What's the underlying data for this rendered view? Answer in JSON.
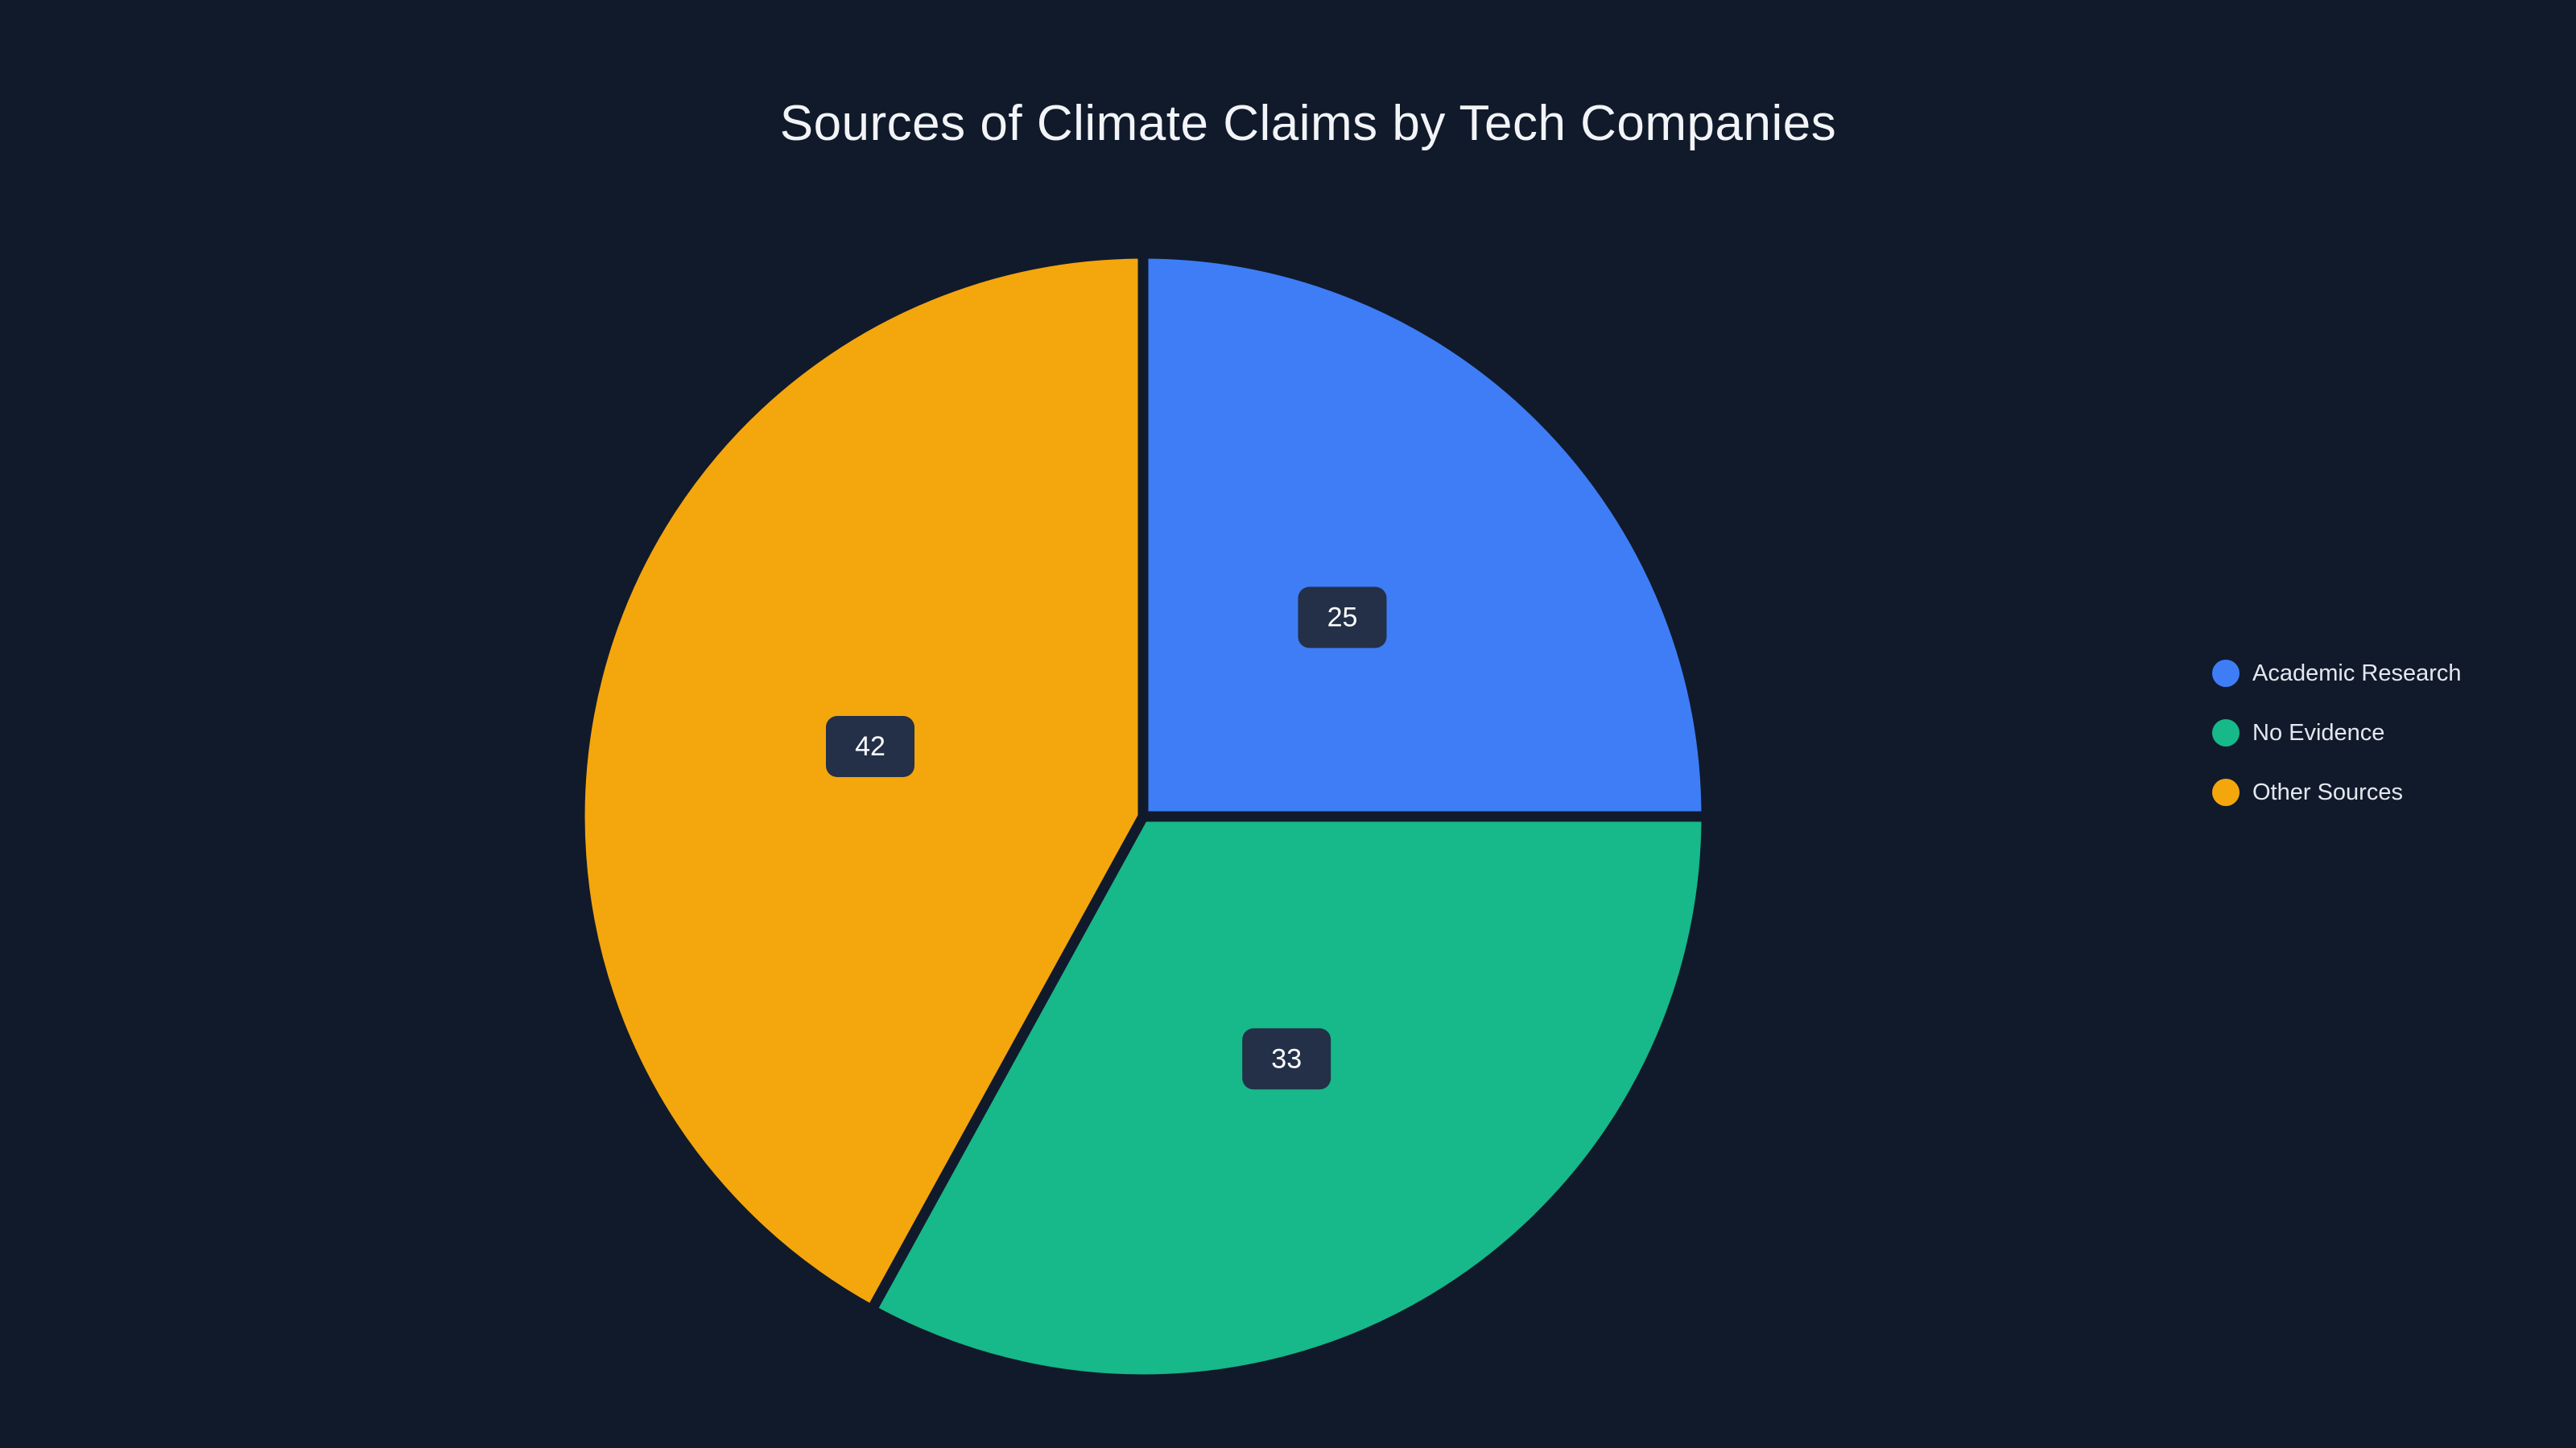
{
  "page": {
    "background": "#111a2b"
  },
  "chart_data": {
    "type": "pie",
    "title": "Sources of Climate Claims by Tech Companies",
    "labels": [
      "Academic Research",
      "No Evidence",
      "Other Sources"
    ],
    "values": [
      25,
      33,
      42
    ],
    "colors": [
      "#3e7df6",
      "#17b889",
      "#f4a60d"
    ],
    "start_angle_deg": 0,
    "direction": "clockwise",
    "legend_position": "right",
    "slice_label_style": "value-in-dark-chip",
    "label_chip_background": "#233047",
    "label_text_color": "#ffffff",
    "title_color": "#f2f4f7",
    "legend_text_color": "#e4e8ee"
  }
}
